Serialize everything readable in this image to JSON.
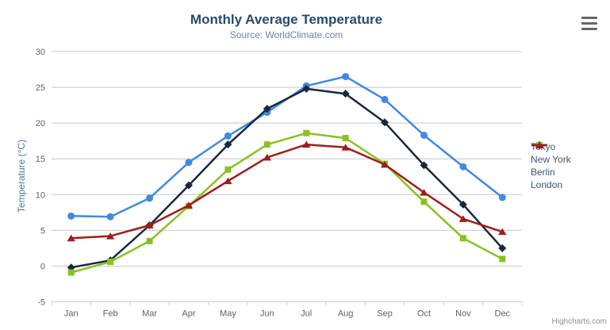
{
  "chart_data": {
    "type": "line",
    "title": "Monthly Average Temperature",
    "subtitle": "Source: WorldClimate.com",
    "xlabel": "",
    "ylabel": "Temperature (°C)",
    "categories": [
      "Jan",
      "Feb",
      "Mar",
      "Apr",
      "May",
      "Jun",
      "Jul",
      "Aug",
      "Sep",
      "Oct",
      "Nov",
      "Dec"
    ],
    "ylim": [
      -5,
      30
    ],
    "y_tick_step": 5,
    "grid": true,
    "legend_position": "right",
    "series": [
      {
        "name": "Tokyo",
        "color": "#4289df",
        "marker": "circle",
        "values": [
          7.0,
          6.9,
          9.5,
          14.5,
          18.2,
          21.5,
          25.2,
          26.5,
          23.3,
          18.3,
          13.9,
          9.6
        ]
      },
      {
        "name": "New York",
        "color": "#17293f",
        "marker": "diamond",
        "values": [
          -0.2,
          0.8,
          5.7,
          11.3,
          17.0,
          22.0,
          24.8,
          24.1,
          20.1,
          14.1,
          8.6,
          2.5
        ]
      },
      {
        "name": "Berlin",
        "color": "#8bc122",
        "marker": "square",
        "values": [
          -0.9,
          0.6,
          3.5,
          8.4,
          13.5,
          17.0,
          18.6,
          17.9,
          14.3,
          9.0,
          3.9,
          1.0
        ]
      },
      {
        "name": "London",
        "color": "#a01d1d",
        "marker": "triangle",
        "values": [
          3.9,
          4.2,
          5.7,
          8.5,
          11.9,
          15.2,
          17.0,
          16.6,
          14.2,
          10.3,
          6.6,
          4.8
        ]
      }
    ],
    "credit": "Highcharts.com"
  },
  "colors": {
    "title": "#274b6d",
    "subtitle": "#6d869f",
    "axis_title": "#4d759e",
    "axis_labels": "#606060",
    "grid_line": "#c8c8c8",
    "axis_line": "#c0d0e0",
    "legend_text": "#3e576f",
    "export_icon": "#666666",
    "credit_text": "#909090"
  },
  "export_menu": {
    "icon": "hamburger-icon"
  }
}
